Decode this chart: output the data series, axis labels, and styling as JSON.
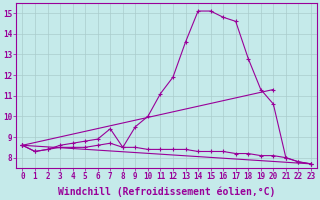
{
  "xlabel": "Windchill (Refroidissement éolien,°C)",
  "bg_color": "#c5eaea",
  "line_color": "#990099",
  "grid_color": "#aacccc",
  "xlim": [
    -0.5,
    23.5
  ],
  "ylim": [
    7.5,
    15.5
  ],
  "xticks": [
    0,
    1,
    2,
    3,
    4,
    5,
    6,
    7,
    8,
    9,
    10,
    11,
    12,
    13,
    14,
    15,
    16,
    17,
    18,
    19,
    20,
    21,
    22,
    23
  ],
  "yticks": [
    8,
    9,
    10,
    11,
    12,
    13,
    14,
    15
  ],
  "series": [
    {
      "x": [
        0,
        1,
        2,
        3,
        4,
        5,
        6,
        7,
        8,
        9,
        10,
        11,
        12,
        13,
        14,
        15,
        16,
        17,
        18,
        19,
        20,
        21,
        22,
        23
      ],
      "y": [
        8.6,
        8.3,
        8.4,
        8.6,
        8.7,
        8.8,
        8.9,
        9.4,
        8.5,
        9.5,
        10.0,
        11.1,
        11.9,
        13.6,
        15.1,
        15.1,
        14.8,
        14.6,
        12.8,
        11.3,
        10.6,
        8.0,
        7.8,
        7.7
      ]
    },
    {
      "x": [
        0,
        1,
        2,
        3,
        4,
        5,
        6,
        7,
        8,
        9,
        10,
        11,
        12,
        13,
        14,
        15,
        16,
        17,
        18,
        19,
        20,
        21,
        22,
        23
      ],
      "y": [
        8.6,
        8.3,
        8.4,
        8.5,
        8.5,
        8.5,
        8.6,
        8.7,
        8.5,
        8.5,
        8.4,
        8.4,
        8.4,
        8.4,
        8.3,
        8.3,
        8.3,
        8.2,
        8.2,
        8.1,
        8.1,
        8.0,
        7.8,
        7.7
      ]
    },
    {
      "x": [
        0,
        23
      ],
      "y": [
        8.6,
        7.7
      ]
    },
    {
      "x": [
        0,
        20
      ],
      "y": [
        8.6,
        11.3
      ]
    }
  ],
  "xlabel_fontsize": 7,
  "tick_fontsize": 5.5,
  "linewidth": 0.8,
  "markersize": 2.5,
  "markeredgewidth": 0.8
}
